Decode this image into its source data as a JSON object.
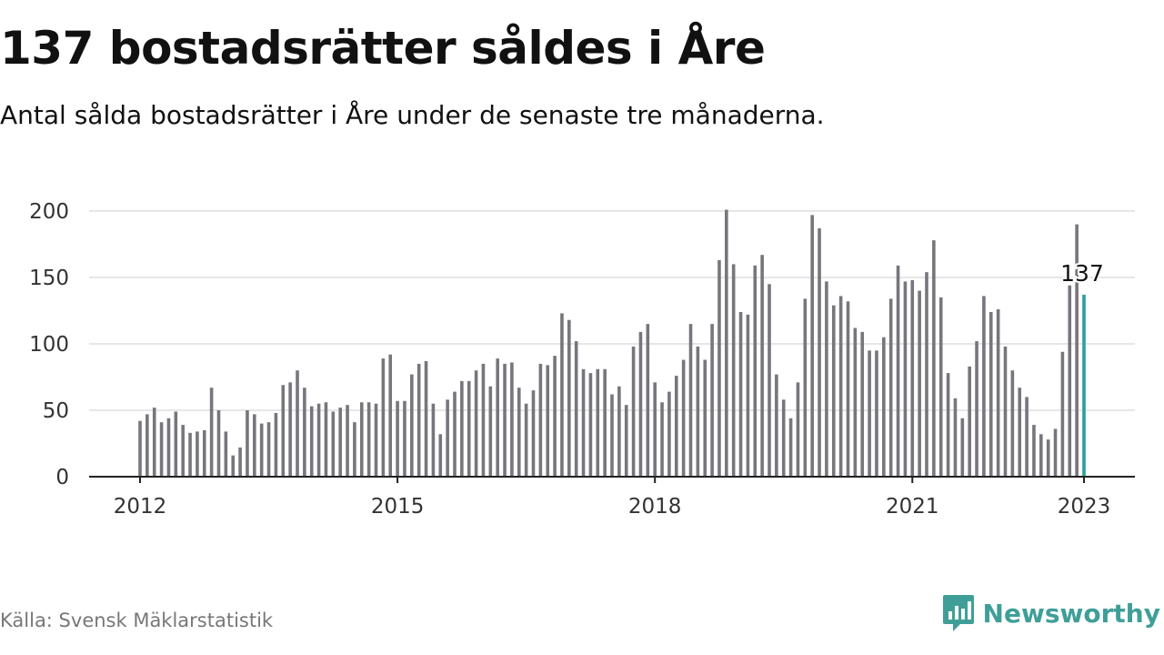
{
  "title": "137 bostadsrätter såldes i Åre",
  "subtitle": "Antal sålda bostadsrätter i Åre under de senaste tre månaderna.",
  "source": "Källa: Svensk Mäklarstatistik",
  "brand": {
    "name": "Newsworthy",
    "icon": "newsworthy-logo-icon",
    "color": "#3f9f98"
  },
  "colors": {
    "bar": "#77767c",
    "highlight": "#2aa198",
    "grid": "#dddddd",
    "axis": "#222222"
  },
  "chart_data": {
    "type": "bar",
    "title": "137 bostadsrätter såldes i Åre",
    "subtitle": "Antal sålda bostadsrätter i Åre under de senaste tre månaderna.",
    "x_start": "2012-01",
    "x_end": "2023-01",
    "x_ticks": [
      "2012",
      "2015",
      "2018",
      "2021",
      "2023"
    ],
    "ylim": [
      0,
      200
    ],
    "y_ticks": [
      0,
      50,
      100,
      150,
      200
    ],
    "grid": true,
    "highlight": {
      "x": "2023-01",
      "value": 137,
      "label": "137"
    },
    "values": [
      42,
      47,
      52,
      41,
      44,
      49,
      39,
      33,
      34,
      35,
      67,
      50,
      34,
      16,
      22,
      50,
      47,
      40,
      41,
      48,
      69,
      71,
      80,
      67,
      53,
      55,
      56,
      49,
      52,
      54,
      41,
      56,
      56,
      55,
      89,
      92,
      57,
      57,
      77,
      85,
      87,
      55,
      32,
      58,
      64,
      72,
      72,
      80,
      85,
      68,
      89,
      85,
      86,
      67,
      55,
      65,
      85,
      84,
      91,
      123,
      118,
      102,
      81,
      78,
      81,
      81,
      62,
      68,
      54,
      98,
      109,
      115,
      71,
      56,
      64,
      76,
      88,
      115,
      98,
      88,
      115,
      163,
      201,
      160,
      124,
      122,
      159,
      167,
      145,
      77,
      58,
      44,
      71,
      134,
      197,
      187,
      147,
      129,
      136,
      132,
      112,
      109,
      95,
      95,
      105,
      134,
      159,
      147,
      148,
      140,
      154,
      178,
      135,
      78,
      59,
      44,
      83,
      102,
      136,
      124,
      126,
      98,
      80,
      67,
      60,
      39,
      32,
      28,
      36,
      94,
      144,
      190,
      137
    ]
  }
}
